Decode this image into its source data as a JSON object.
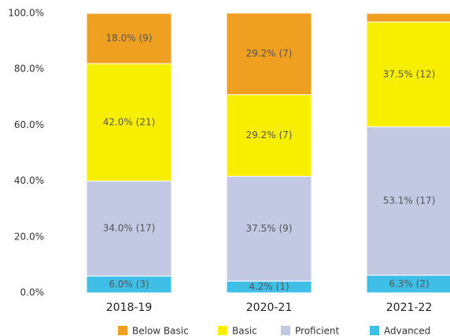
{
  "chart_data": {
    "type": "stacked-bar",
    "categories": [
      "2018-19",
      "2020-21",
      "2021-22"
    ],
    "series": [
      {
        "name": "Below Basic",
        "color": "#f0a020",
        "values": [
          18.0,
          29.2,
          3.1
        ],
        "value_labels": [
          "18.0% (9)",
          "29.2% (7)",
          null
        ]
      },
      {
        "name": "Basic",
        "color": "#f8ef00",
        "values": [
          42.0,
          29.2,
          37.5
        ],
        "value_labels": [
          "42.0% (21)",
          "29.2% (7)",
          "37.5% (12)"
        ]
      },
      {
        "name": "Proficient",
        "color": "#c3c9e3",
        "values": [
          34.0,
          37.5,
          53.1
        ],
        "value_labels": [
          "34.0% (17)",
          "37.5% (9)",
          "53.1% (17)"
        ]
      },
      {
        "name": "Advanced",
        "color": "#3fbfe8",
        "values": [
          6.0,
          4.2,
          6.3
        ],
        "value_labels": [
          "6.0% (3)",
          "4.2% (1)",
          "6.3% (2)"
        ]
      }
    ],
    "ylim": [
      0,
      100
    ],
    "yticks": [
      {
        "value": 0,
        "label": "0.0%"
      },
      {
        "value": 20,
        "label": "20.0%"
      },
      {
        "value": 40,
        "label": "40.0%"
      },
      {
        "value": 60,
        "label": "60.0%"
      },
      {
        "value": 80,
        "label": "80.0%"
      },
      {
        "value": 100,
        "label": "100.0%"
      }
    ],
    "legend": "bottom"
  }
}
